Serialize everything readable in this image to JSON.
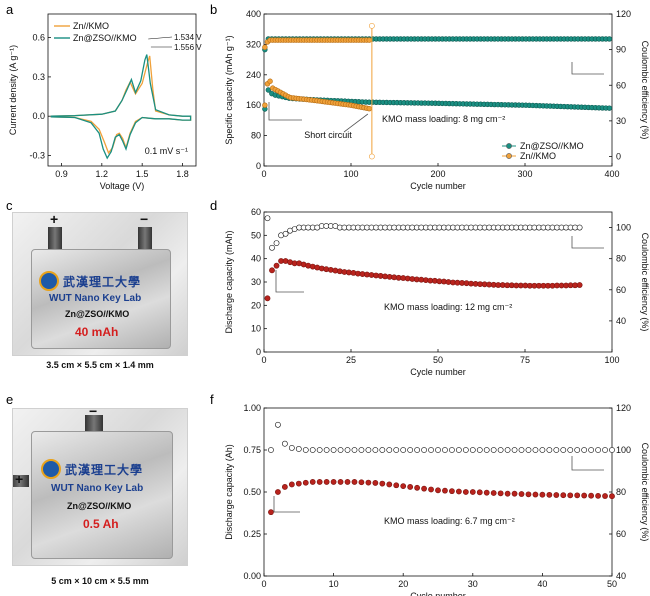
{
  "panel_letters": [
    "a",
    "b",
    "c",
    "d",
    "e",
    "f"
  ],
  "chart_data": [
    {
      "id": "a",
      "type": "line",
      "xlabel": "Voltage (V)",
      "ylabel": "Current density (A g⁻¹)",
      "xlim": [
        0.8,
        1.9
      ],
      "ylim": [
        -0.38,
        0.78
      ],
      "xticks": [
        0.9,
        1.2,
        1.5,
        1.8
      ],
      "yticks": [
        -0.3,
        0.0,
        0.3,
        0.6
      ],
      "xtick_labels": [
        "0.9",
        "1.2",
        "1.5",
        "1.8"
      ],
      "ytick_labels": [
        "-0.3",
        "0.0",
        "0.3",
        "0.6"
      ],
      "annotations": [
        "1.534 V",
        "1.556 V",
        "0.1 mV s⁻¹"
      ],
      "legend_position": "top-left",
      "series": [
        {
          "name": "Zn//KMO",
          "color": "#f0a13a",
          "x": [
            0.82,
            1.0,
            1.12,
            1.18,
            1.22,
            1.25,
            1.28,
            1.31,
            1.33,
            1.355,
            1.38,
            1.41,
            1.45,
            1.5,
            1.55,
            1.6,
            1.7,
            1.8,
            1.86,
            1.86,
            1.8,
            1.7,
            1.6,
            1.58,
            1.556,
            1.54,
            1.5,
            1.45,
            1.41,
            1.38,
            1.35,
            1.3,
            1.2,
            1.0,
            0.82
          ],
          "y": [
            -0.005,
            -0.01,
            -0.04,
            -0.1,
            -0.2,
            -0.28,
            -0.24,
            -0.14,
            -0.13,
            -0.17,
            -0.24,
            -0.13,
            -0.04,
            -0.01,
            -0.015,
            -0.02,
            -0.02,
            -0.03,
            -0.03,
            0.0,
            0.0,
            0.01,
            0.04,
            0.2,
            0.46,
            0.41,
            0.25,
            0.17,
            0.26,
            0.2,
            0.12,
            0.04,
            0.015,
            0.005,
            0.0
          ]
        },
        {
          "name": "Zn@ZSO//KMO",
          "color": "#1a8f82",
          "x": [
            0.82,
            1.0,
            1.12,
            1.18,
            1.21,
            1.24,
            1.27,
            1.3,
            1.33,
            1.355,
            1.38,
            1.41,
            1.45,
            1.5,
            1.55,
            1.6,
            1.7,
            1.8,
            1.86,
            1.86,
            1.8,
            1.7,
            1.6,
            1.56,
            1.534,
            1.52,
            1.49,
            1.45,
            1.42,
            1.39,
            1.35,
            1.3,
            1.2,
            1.0,
            0.82
          ],
          "y": [
            -0.005,
            -0.01,
            -0.05,
            -0.13,
            -0.25,
            -0.32,
            -0.27,
            -0.16,
            -0.14,
            -0.19,
            -0.25,
            -0.14,
            -0.05,
            -0.01,
            -0.015,
            -0.02,
            -0.02,
            -0.03,
            -0.03,
            0.0,
            0.0,
            0.01,
            0.05,
            0.25,
            0.47,
            0.43,
            0.27,
            0.18,
            0.28,
            0.21,
            0.12,
            0.04,
            0.015,
            0.005,
            0.0
          ]
        }
      ]
    },
    {
      "id": "b",
      "type": "scatter",
      "xlabel": "Cycle number",
      "ylabel": "Specific capacity (mAh g⁻¹)",
      "y2label": "Coulombic efficiency (%)",
      "xlim": [
        0,
        400
      ],
      "ylim": [
        0,
        400
      ],
      "y2lim": [
        -8,
        120
      ],
      "xticks": [
        0,
        100,
        200,
        300,
        400
      ],
      "yticks": [
        0,
        80,
        160,
        240,
        320,
        400
      ],
      "y2ticks": [
        0,
        30,
        60,
        90,
        120
      ],
      "xtick_labels": [
        "0",
        "100",
        "200",
        "300",
        "400"
      ],
      "ytick_labels": [
        "0",
        "80",
        "160",
        "240",
        "320",
        "400"
      ],
      "y2tick_labels": [
        "0",
        "30",
        "60",
        "90",
        "120"
      ],
      "annotations": [
        "Short circuit",
        "KMO mass loading: 8 mg cm⁻²"
      ],
      "legend_position": "bottom-right",
      "series": [
        {
          "name": "Zn@ZSO//KMO",
          "color": "#1a8f82",
          "axis": "left",
          "x_end": 400,
          "capacity_curve": [
            [
              1,
              150
            ],
            [
              5,
              200
            ],
            [
              10,
              188
            ],
            [
              30,
              178
            ],
            [
              60,
              174
            ],
            [
              120,
              168
            ],
            [
              200,
              165
            ],
            [
              300,
              160
            ],
            [
              400,
              152
            ]
          ],
          "ce_curve": [
            [
              1,
              90
            ],
            [
              5,
              99
            ],
            [
              400,
              99
            ]
          ]
        },
        {
          "name": "Zn//KMO",
          "color": "#f0a13a",
          "axis": "left",
          "x_end": 123,
          "capacity_curve": [
            [
              1,
              160
            ],
            [
              5,
              235
            ],
            [
              10,
              205
            ],
            [
              30,
              180
            ],
            [
              60,
              172
            ],
            [
              100,
              160
            ],
            [
              123,
              150
            ]
          ],
          "ce_curve": [
            [
              1,
              92
            ],
            [
              5,
              98
            ],
            [
              123,
              98
            ]
          ],
          "short_circuit": {
            "cycle": 124,
            "ce_high": 110,
            "ce_low": 0
          }
        }
      ]
    },
    {
      "id": "d",
      "type": "scatter",
      "xlabel": "Cycle number",
      "ylabel": "Discharge capacity (mAh)",
      "y2label": "Coulombic efficiency (%)",
      "xlim": [
        0,
        100
      ],
      "ylim": [
        0,
        60
      ],
      "y2lim": [
        20,
        110
      ],
      "xticks": [
        0,
        25,
        50,
        75,
        100
      ],
      "yticks": [
        0,
        10,
        20,
        30,
        40,
        50,
        60
      ],
      "y2ticks": [
        40,
        60,
        80,
        100
      ],
      "xtick_labels": [
        "0",
        "25",
        "50",
        "75",
        "100"
      ],
      "ytick_labels": [
        "0",
        "10",
        "20",
        "30",
        "40",
        "50",
        "60"
      ],
      "y2tick_labels": [
        "40",
        "60",
        "80",
        "100"
      ],
      "annotations": [
        "KMO mass loading: 12 mg cm⁻²"
      ],
      "series": [
        {
          "name": "Discharge capacity",
          "color": "#b8231d",
          "values": [
            23,
            35,
            37,
            39,
            39,
            38.5,
            38,
            38,
            37.5,
            37,
            36.6,
            36.2,
            35.8,
            35.5,
            35.2,
            34.9,
            34.6,
            34.3,
            34.1,
            33.9,
            33.6,
            33.4,
            33.2,
            33,
            32.8,
            32.6,
            32.4,
            32.2,
            32,
            31.8,
            31.7,
            31.5,
            31.3,
            31.1,
            31,
            30.8,
            30.6,
            30.5,
            30.3,
            30.2,
            30,
            29.8,
            29.7,
            29.6,
            29.5,
            29.3,
            29.2,
            29.1,
            29,
            28.9,
            28.8,
            28.7,
            28.7,
            28.6,
            28.6,
            28.5,
            28.5,
            28.5,
            28.4,
            28.4,
            28.4,
            28.4,
            28.4,
            28.4,
            28.5,
            28.5,
            28.5,
            28.6,
            28.6,
            28.7
          ]
        },
        {
          "name": "Coulombic efficiency",
          "color": "#111111",
          "axis": "right",
          "values": [
            106,
            87,
            90,
            95,
            96,
            98,
            99,
            100,
            100,
            100,
            100,
            100,
            101,
            101,
            101,
            101,
            100,
            100,
            100,
            100,
            100,
            100,
            100,
            100,
            100,
            100,
            100,
            100,
            100,
            100,
            100,
            100,
            100,
            100,
            100,
            100,
            100,
            100,
            100,
            100,
            100,
            100,
            100,
            100,
            100,
            100,
            100,
            100,
            100,
            100,
            100,
            100,
            100,
            100,
            100,
            100,
            100,
            100,
            100,
            100,
            100,
            100,
            100,
            100,
            100,
            100,
            100,
            100,
            100,
            100
          ]
        }
      ]
    },
    {
      "id": "f",
      "type": "scatter",
      "xlabel": "Cycle number",
      "ylabel": "Discharge capacity (Ah)",
      "y2label": "Coulombic efficiency (%)",
      "xlim": [
        0,
        50
      ],
      "ylim": [
        0,
        1.0
      ],
      "y2lim": [
        40,
        120
      ],
      "xticks": [
        0,
        10,
        20,
        30,
        40,
        50
      ],
      "yticks": [
        0,
        0.25,
        0.5,
        0.75,
        1.0
      ],
      "y2ticks": [
        40,
        60,
        80,
        100,
        120
      ],
      "xtick_labels": [
        "0",
        "10",
        "20",
        "30",
        "40",
        "50"
      ],
      "ytick_labels": [
        "0.00",
        "0.25",
        "0.50",
        "0.75",
        "1.00"
      ],
      "y2tick_labels": [
        "40",
        "60",
        "80",
        "100",
        "120"
      ],
      "annotations": [
        "KMO mass loading: 6.7 mg cm⁻²"
      ],
      "series": [
        {
          "name": "Discharge capacity",
          "color": "#b8231d",
          "values": [
            0.38,
            0.5,
            0.53,
            0.545,
            0.55,
            0.555,
            0.56,
            0.56,
            0.56,
            0.56,
            0.56,
            0.56,
            0.56,
            0.558,
            0.556,
            0.554,
            0.55,
            0.545,
            0.54,
            0.535,
            0.53,
            0.525,
            0.52,
            0.515,
            0.51,
            0.508,
            0.505,
            0.503,
            0.5,
            0.5,
            0.498,
            0.496,
            0.494,
            0.492,
            0.49,
            0.49,
            0.488,
            0.486,
            0.485,
            0.484,
            0.483,
            0.482,
            0.481,
            0.48,
            0.48,
            0.479,
            0.478,
            0.477,
            0.476,
            0.475
          ]
        },
        {
          "name": "Coulombic efficiency",
          "color": "#111111",
          "axis": "right",
          "values": [
            100,
            112,
            103,
            101,
            100.5,
            100,
            100,
            100,
            100,
            100,
            100,
            100,
            100,
            100,
            100,
            100,
            100,
            100,
            100,
            100,
            100,
            100,
            100,
            100,
            100,
            100,
            100,
            100,
            100,
            100,
            100,
            100,
            100,
            100,
            100,
            100,
            100,
            100,
            100,
            100,
            100,
            100,
            100,
            100,
            100,
            100,
            100,
            100,
            100,
            100
          ]
        }
      ]
    }
  ],
  "photos": [
    {
      "id": "c",
      "chinese": "武漢理工大學",
      "lab_name": "WUT Nano Key Lab",
      "cell_name": "Zn@ZSO//KMO",
      "capacity": "40 mAh",
      "dimensions": "3.5 cm × 5.5 cm × 1.4 mm",
      "plus": "+",
      "minus": "−"
    },
    {
      "id": "e",
      "chinese": "武漢理工大學",
      "lab_name": "WUT Nano Key Lab",
      "cell_name": "Zn@ZSO//KMO",
      "capacity": "0.5 Ah",
      "dimensions": "5 cm × 10 cm × 5.5 mm",
      "plus": "+",
      "minus": "−"
    }
  ]
}
